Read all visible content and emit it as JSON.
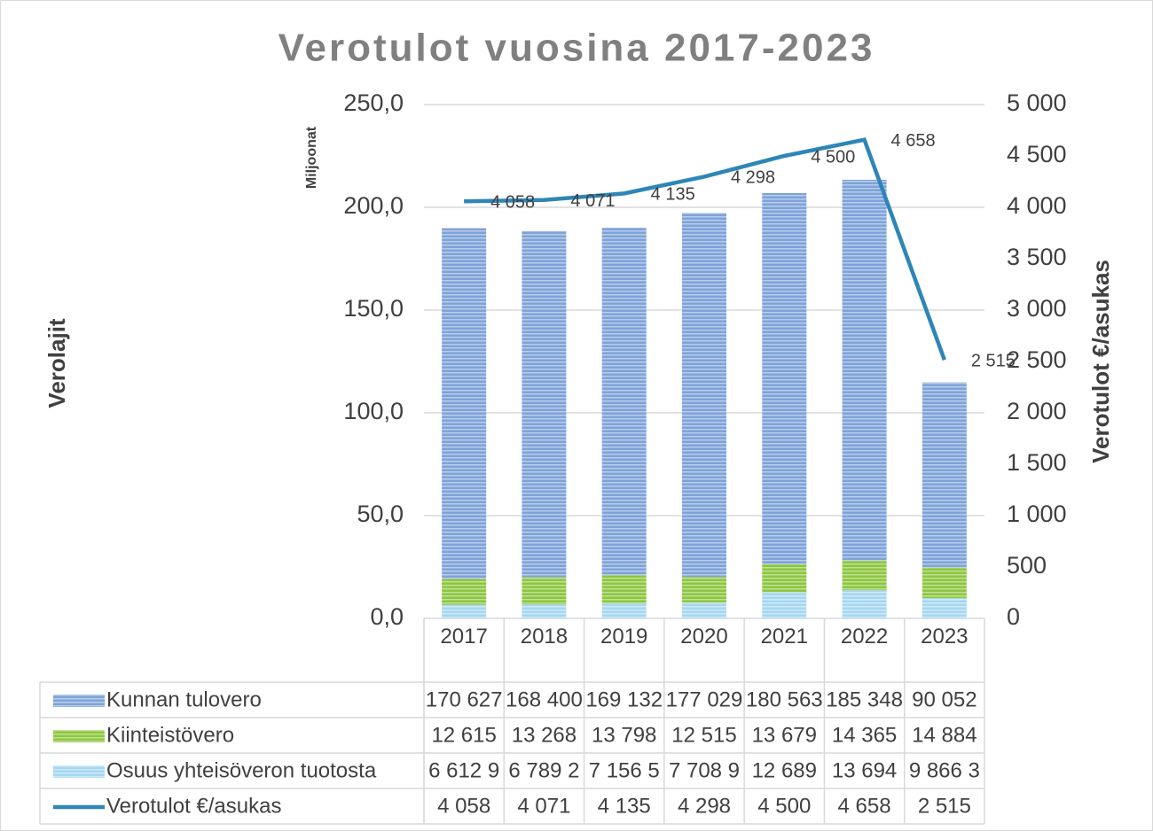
{
  "chart_data": {
    "type": "bar",
    "stacked": true,
    "title": "Verotulot vuosina 2017-2023",
    "y_unit_label": "Miljoonat",
    "y_axis_label": "Verolajit",
    "y2_axis_label": "Verotulot €/asukas",
    "categories": [
      "2017",
      "2018",
      "2019",
      "2020",
      "2021",
      "2022",
      "2023"
    ],
    "ylim": [
      0,
      250
    ],
    "yticks": [
      {
        "value": 0,
        "label": "0,0"
      },
      {
        "value": 50,
        "label": "50,0"
      },
      {
        "value": 100,
        "label": "100,0"
      },
      {
        "value": 150,
        "label": "150,0"
      },
      {
        "value": 200,
        "label": "200,0"
      },
      {
        "value": 250,
        "label": "250,0"
      }
    ],
    "y2lim": [
      0,
      5000
    ],
    "y2ticks": [
      0,
      500,
      {
        "value": 1000,
        "label": "1 000"
      },
      {
        "value": 1500,
        "label": "1 500"
      },
      {
        "value": 2000,
        "label": "2 000"
      },
      {
        "value": 2500,
        "label": "2 500"
      },
      {
        "value": 3000,
        "label": "3 000"
      },
      {
        "value": 3500,
        "label": "3 500"
      },
      {
        "value": 4000,
        "label": "4 000"
      },
      {
        "value": 4500,
        "label": "4 500"
      },
      {
        "value": 5000,
        "label": "5 000"
      }
    ],
    "grid": true,
    "series": [
      {
        "name": "Kunnan tulovero",
        "color": "#7ea3d9",
        "values": [
          170.627,
          168.4,
          169.132,
          177.029,
          180.563,
          185.348,
          90.052
        ],
        "value_labels": [
          "170 627",
          "168 400",
          "169 132",
          "177 029",
          "180 563",
          "185 348",
          "90 052"
        ]
      },
      {
        "name": "Kiinteistövero",
        "color": "#8dc63f",
        "values": [
          12.615,
          13.268,
          13.798,
          12.515,
          13.679,
          14.365,
          14.884
        ],
        "value_labels": [
          "12 615",
          "13 268",
          "13 798",
          "12 515",
          "13 679",
          "14 365",
          "14 884"
        ]
      },
      {
        "name": "Osuus yhteisöveron tuotosta",
        "color": "#a5d7f0",
        "values": [
          6.6129,
          6.7892,
          7.1565,
          7.7089,
          12.689,
          13.694,
          9.8663
        ],
        "value_labels": [
          "6 612 9",
          "6 789 2",
          "7 156 5",
          "7 708 9",
          "12 689",
          "13 694",
          "9 866 3"
        ]
      },
      {
        "name": "Verotulot €/asukas",
        "type": "line",
        "axis": "y2",
        "color": "#2e86b6",
        "values": [
          4058,
          4071,
          4135,
          4298,
          4500,
          4658,
          2515
        ],
        "value_labels": [
          "4 058",
          "4 071",
          "4 135",
          "4 298",
          "4 500",
          "4 658",
          "2 515"
        ]
      }
    ]
  }
}
